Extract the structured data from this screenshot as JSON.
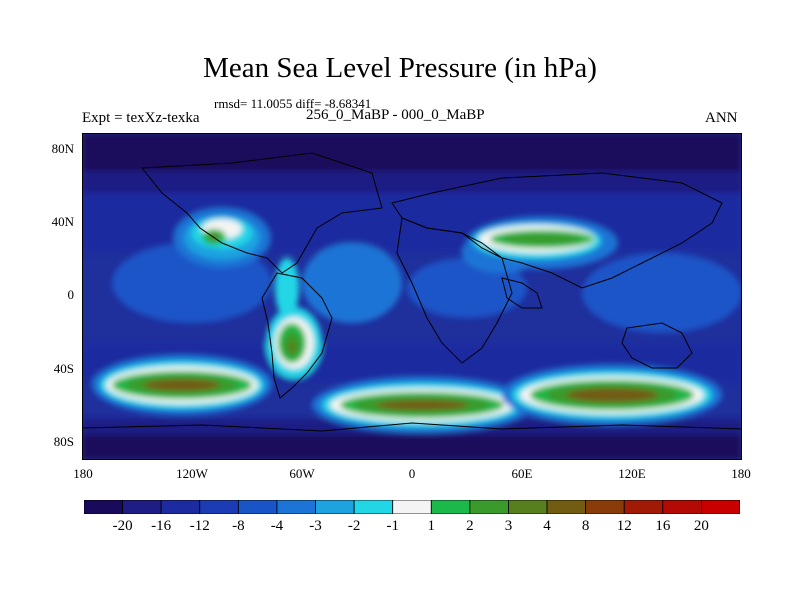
{
  "title": "Mean Sea Level Pressure (in hPa)",
  "stats": "rmsd= 11.0055 diff= -8.68341",
  "left_label": "Expt = texXz-texka",
  "center_label": "256_0_MaBP - 000_0_MaBP",
  "right_label": "ANN",
  "lat_ticks": [
    "80N",
    "40N",
    "0",
    "40S",
    "80S"
  ],
  "lon_ticks": [
    "180",
    "120W",
    "60W",
    "0",
    "60E",
    "120E",
    "180"
  ],
  "colorbar": {
    "labels": [
      "-20",
      "-16",
      "-12",
      "-8",
      "-4",
      "-3",
      "-2",
      "-1",
      "1",
      "2",
      "3",
      "4",
      "8",
      "12",
      "16",
      "20"
    ],
    "colors": [
      "#1a0a5c",
      "#1f1c84",
      "#1d2ba0",
      "#1b3cb4",
      "#1a55c8",
      "#1c74d6",
      "#1ea2e0",
      "#22d6e6",
      "#f4f4f4",
      "#1cb84a",
      "#3a9a2c",
      "#577f1e",
      "#725c12",
      "#8a3b0a",
      "#a01a06",
      "#b40a04",
      "#c80000"
    ]
  },
  "icons": {
    "map": "pressure-anomaly-map",
    "coastlines": "coastline-icon"
  }
}
